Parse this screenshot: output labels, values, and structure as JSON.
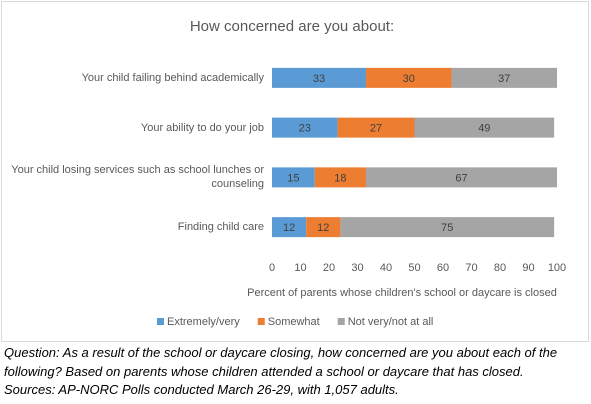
{
  "chart_data": {
    "type": "stacked-bar-horizontal",
    "title": "How concerned are you about:",
    "categories": [
      "Your child failing behind academically",
      "Your ability to do your job",
      "Your child losing services such as school lunches or counseling",
      "Finding child care"
    ],
    "series": [
      {
        "name": "Extremely/very",
        "color": "#5b9bd5",
        "values": [
          33,
          23,
          15,
          12
        ]
      },
      {
        "name": "Somewhat",
        "color": "#ed7d31",
        "values": [
          30,
          27,
          18,
          12
        ]
      },
      {
        "name": "Not very/not at all",
        "color": "#a5a5a5",
        "values": [
          37,
          49,
          67,
          75
        ]
      }
    ],
    "xlim": [
      0,
      100
    ],
    "xticks": [
      0,
      10,
      20,
      30,
      40,
      50,
      60,
      70,
      80,
      90,
      100
    ],
    "x_label": "Percent of parents whose children's school or daycare is closed",
    "grid": false,
    "legend": "bottom"
  },
  "caption": [
    "Question: As a result of the school or daycare closing, how concerned are you about each of the following? Based on parents whose children attended a school or daycare that has closed.",
    "Sources: AP-NORC Polls conducted March 26-29, with 1,057 adults."
  ]
}
